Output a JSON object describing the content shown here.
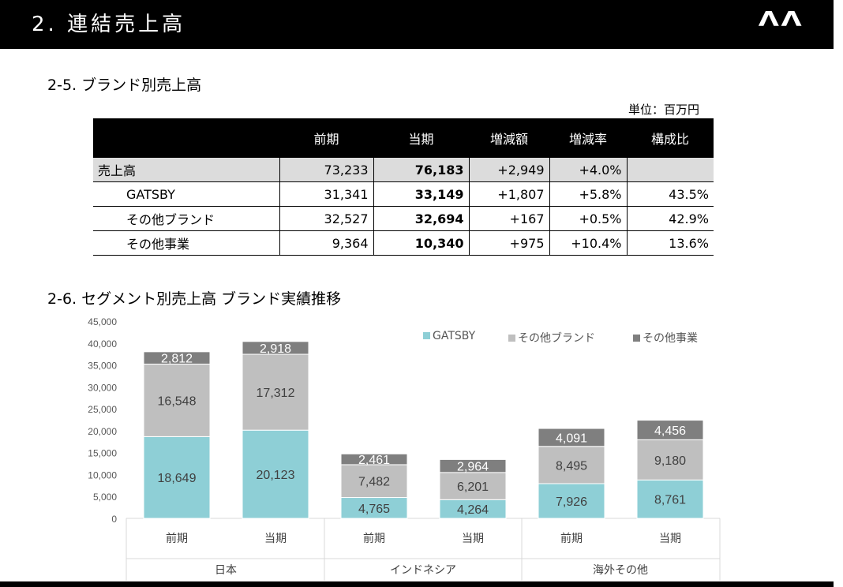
{
  "header": {
    "title": "2.  連結売上高"
  },
  "section_1": {
    "title": "2-5. ブランド別売上高",
    "unit": "単位：百万円"
  },
  "table": {
    "columns": [
      "",
      "前期",
      "当期",
      "増減額",
      "増減率",
      "構成比"
    ],
    "rows": [
      [
        "売上高",
        "73,233",
        "76,183",
        "+2,949",
        "+4.0%",
        ""
      ],
      [
        "GATSBY",
        "31,341",
        "33,149",
        "+1,807",
        "+5.8%",
        "43.5%"
      ],
      [
        "その他ブランド",
        "32,527",
        "32,694",
        "+167",
        "+0.5%",
        "42.9%"
      ],
      [
        "その他事業",
        "9,364",
        "10,340",
        "+975",
        "+10.4%",
        "13.6%"
      ]
    ]
  },
  "section_2": {
    "title": "2-6. セグメント別売上高 ブランド実績推移"
  },
  "legend": [
    {
      "label": "GATSBY",
      "color": "#8ecfd6"
    },
    {
      "label": "その他ブランド",
      "color": "#bfbfbf"
    },
    {
      "label": "その他事業",
      "color": "#7f7f7f"
    }
  ],
  "chart_data": {
    "type": "bar",
    "stacked": true,
    "categories": [
      "前期",
      "当期",
      "前期",
      "当期",
      "前期",
      "当期"
    ],
    "groups": [
      "日本",
      "インドネシア",
      "海外その他"
    ],
    "y_ticks": [
      "0",
      "5,000",
      "10,000",
      "15,000",
      "20,000",
      "25,000",
      "30,000",
      "35,000",
      "40,000",
      "45,000"
    ],
    "ylim": [
      0,
      45000
    ],
    "series": [
      {
        "name": "GATSBY",
        "color": "#8ecfd6",
        "values": [
          18649,
          20123,
          4765,
          4264,
          7926,
          8761
        ],
        "labels": [
          "18,649",
          "20,123",
          "4,765",
          "4,264",
          "7,926",
          "8,761"
        ]
      },
      {
        "name": "その他ブランド",
        "color": "#bfbfbf",
        "values": [
          16548,
          17312,
          7482,
          6201,
          8495,
          9180
        ],
        "labels": [
          "16,548",
          "17,312",
          "7,482",
          "6,201",
          "8,495",
          "9,180"
        ]
      },
      {
        "name": "その他事業",
        "color": "#7f7f7f",
        "values": [
          2812,
          2918,
          2461,
          2964,
          4091,
          4456
        ],
        "labels": [
          "2,812",
          "2,918",
          "2,461",
          "2,964",
          "4,091",
          "4,456"
        ]
      }
    ]
  }
}
